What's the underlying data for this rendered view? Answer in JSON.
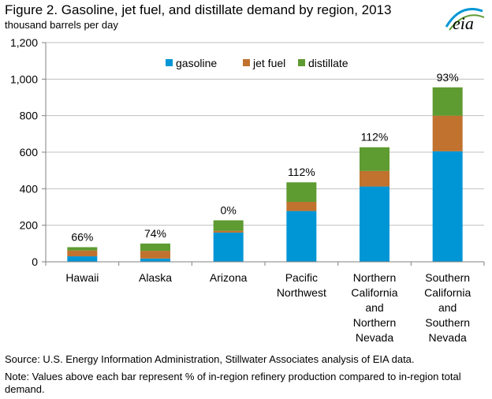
{
  "header": {
    "title": "Figure 2. Gasoline, jet fuel, and distillate demand by region, 2013",
    "subtitle": "thousand barrels per day",
    "logo_text": "eia"
  },
  "colors": {
    "gasoline": "#0096d6",
    "jet_fuel": "#c0722e",
    "distillate": "#5e9b31",
    "axis": "#808080",
    "grid": "#bfbfbf"
  },
  "chart_data": {
    "type": "bar",
    "stacked": true,
    "categories": [
      [
        "Hawaii"
      ],
      [
        "Alaska"
      ],
      [
        "Arizona"
      ],
      [
        "Pacific",
        "Northwest"
      ],
      [
        "Northern",
        "California",
        "and",
        "Northern",
        "Nevada"
      ],
      [
        "Southern",
        "California",
        "and",
        "Southern",
        "Nevada"
      ]
    ],
    "series": [
      {
        "name": "gasoline",
        "values": [
          30,
          18,
          160,
          278,
          412,
          605
        ]
      },
      {
        "name": "jet fuel",
        "values": [
          32,
          42,
          10,
          50,
          85,
          195
        ]
      },
      {
        "name": "distillate",
        "values": [
          18,
          40,
          57,
          107,
          130,
          155
        ]
      }
    ],
    "bar_labels": [
      "66%",
      "74%",
      "0%",
      "112%",
      "112%",
      "93%"
    ],
    "ylim": [
      0,
      1200
    ],
    "yticks": [
      0,
      200,
      400,
      600,
      800,
      1000,
      1200
    ],
    "ytick_labels": [
      "0",
      "200",
      "400",
      "600",
      "800",
      "1,000",
      "1,200"
    ],
    "grid": true,
    "legend_position": "top-center"
  },
  "footer": {
    "source": "Source: U.S. Energy Information Administration, Stillwater Associates analysis of EIA data.",
    "note": "Note: Values above each bar represent % of in-region refinery production compared to in-region total demand."
  }
}
